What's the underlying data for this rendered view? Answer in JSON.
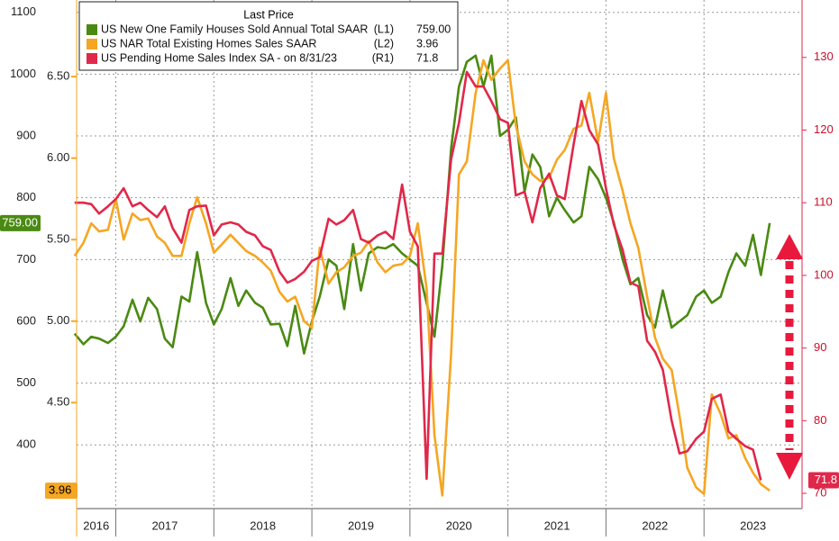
{
  "chart_data": {
    "type": "line",
    "legend_title": "Last Price",
    "x": [
      2016.58,
      2016.67,
      2016.75,
      2016.83,
      2016.92,
      2017.0,
      2017.08,
      2017.17,
      2017.25,
      2017.33,
      2017.42,
      2017.5,
      2017.58,
      2017.67,
      2017.75,
      2017.83,
      2017.92,
      2018.0,
      2018.08,
      2018.17,
      2018.25,
      2018.33,
      2018.42,
      2018.5,
      2018.58,
      2018.67,
      2018.75,
      2018.83,
      2018.92,
      2019.0,
      2019.08,
      2019.17,
      2019.25,
      2019.33,
      2019.42,
      2019.5,
      2019.58,
      2019.67,
      2019.75,
      2019.83,
      2019.92,
      2020.0,
      2020.08,
      2020.17,
      2020.25,
      2020.33,
      2020.42,
      2020.5,
      2020.58,
      2020.67,
      2020.75,
      2020.83,
      2020.92,
      2021.0,
      2021.08,
      2021.17,
      2021.25,
      2021.33,
      2021.42,
      2021.5,
      2021.58,
      2021.67,
      2021.75,
      2021.83,
      2021.92,
      2022.0,
      2022.08,
      2022.17,
      2022.25,
      2022.33,
      2022.42,
      2022.5,
      2022.58,
      2022.67,
      2022.75,
      2022.83,
      2022.92,
      2023.0,
      2023.08,
      2023.17,
      2023.25,
      2023.33,
      2023.42,
      2023.5,
      2023.58,
      2023.67
    ],
    "xlim": [
      2016.6,
      2024.0
    ],
    "xticks": [
      2017,
      2018,
      2019,
      2020,
      2021,
      2022,
      2023
    ],
    "year_labels": [
      {
        "value": 2016,
        "label": "2016"
      },
      {
        "value": 2017,
        "label": "2017"
      },
      {
        "value": 2018,
        "label": "2018"
      },
      {
        "value": 2019,
        "label": "2019"
      },
      {
        "value": 2020,
        "label": "2020"
      },
      {
        "value": 2021,
        "label": "2021"
      },
      {
        "value": 2022,
        "label": "2022"
      },
      {
        "value": 2023,
        "label": "2023"
      }
    ],
    "ylim": [
      297,
      1120
    ],
    "yticks": [
      400,
      500,
      600,
      700,
      800,
      900,
      1000,
      1100
    ],
    "y3lim": [
      3.85,
      6.97
    ],
    "y3ticks": [
      {
        "value": 4.5,
        "label": "4.50"
      },
      {
        "value": 5,
        "label": "5.00"
      },
      {
        "value": 5.5,
        "label": "5.50"
      },
      {
        "value": 6,
        "label": "6.00"
      },
      {
        "value": 6.5,
        "label": "6.50"
      }
    ],
    "y2lim": [
      67.9,
      137.9
    ],
    "y2ticks": [
      70,
      80,
      90,
      100,
      110,
      120,
      130
    ],
    "grid": true,
    "series": [
      {
        "name": "US New One Family Houses Sold Annual Total SAAR",
        "axis_label": "(L1)",
        "last_label": "759.00",
        "color": "#4a8a12",
        "axis": "y",
        "values": [
          580,
          563,
          575,
          572,
          565,
          575,
          592,
          635,
          600,
          638,
          620,
          572,
          558,
          640,
          632,
          712,
          630,
          595,
          620,
          670,
          625,
          650,
          630,
          622,
          595,
          596,
          560,
          625,
          548,
          600,
          640,
          700,
          690,
          620,
          725,
          650,
          710,
          720,
          718,
          725,
          710,
          700,
          690,
          630,
          575,
          690,
          880,
          980,
          1020,
          1030,
          980,
          1030,
          900,
          910,
          930,
          810,
          870,
          850,
          770,
          800,
          780,
          760,
          770,
          850,
          830,
          800,
          760,
          700,
          660,
          670,
          610,
          590,
          650,
          590,
          600,
          610,
          640,
          650,
          630,
          640,
          680,
          710,
          690,
          740,
          675,
          759
        ]
      },
      {
        "name": "US NAR Total Existing Homes Sales SAAR",
        "axis_label": "(L2)",
        "last_label": "3.96",
        "color": "#f5a623",
        "axis": "y3",
        "values": [
          5.4,
          5.48,
          5.6,
          5.55,
          5.56,
          5.75,
          5.5,
          5.66,
          5.62,
          5.63,
          5.52,
          5.48,
          5.4,
          5.4,
          5.6,
          5.76,
          5.6,
          5.42,
          5.47,
          5.53,
          5.48,
          5.43,
          5.4,
          5.36,
          5.31,
          5.18,
          5.12,
          5.15,
          5.0,
          4.96,
          5.45,
          5.23,
          5.3,
          5.33,
          5.4,
          5.42,
          5.49,
          5.36,
          5.3,
          5.34,
          5.35,
          5.4,
          5.6,
          5.2,
          4.3,
          3.93,
          4.8,
          5.9,
          5.98,
          6.4,
          6.6,
          6.48,
          6.55,
          6.6,
          6.2,
          5.98,
          5.9,
          5.86,
          5.88,
          5.99,
          6.05,
          6.18,
          6.2,
          6.4,
          6.1,
          6.4,
          6.0,
          5.8,
          5.6,
          5.45,
          5.15,
          4.9,
          4.77,
          4.7,
          4.42,
          4.1,
          3.98,
          3.94,
          4.55,
          4.43,
          4.28,
          4.3,
          4.16,
          4.07,
          4.0,
          3.96
        ]
      },
      {
        "name": "US Pending Home Sales Index SA -  on 8/31/23",
        "axis_label": "(R1)",
        "last_label": "71.8",
        "color": "#e0284a",
        "axis": "y2",
        "values": [
          110,
          110,
          109.8,
          108.5,
          109.5,
          110.5,
          112,
          109.5,
          110,
          109,
          108,
          109.5,
          106.5,
          104.5,
          109,
          109.5,
          109.6,
          105.5,
          107,
          107.3,
          107,
          106,
          105.5,
          104,
          103.5,
          100.5,
          99,
          99.5,
          100.5,
          102,
          102.5,
          107.8,
          107,
          107.6,
          109,
          105,
          104.5,
          105.5,
          106,
          105,
          112.5,
          106,
          104,
          72,
          103,
          103,
          116,
          121,
          128,
          126,
          126,
          124,
          121.5,
          121,
          111,
          111.5,
          107.3,
          112,
          114,
          111,
          110.5,
          118,
          124,
          120,
          118,
          112,
          107,
          103.5,
          99,
          98.5,
          91,
          89.5,
          87,
          80,
          75.5,
          75.8,
          77.5,
          78.5,
          83,
          83.6,
          78.5,
          77.5,
          76.5,
          76,
          71.8,
          null
        ]
      }
    ]
  }
}
